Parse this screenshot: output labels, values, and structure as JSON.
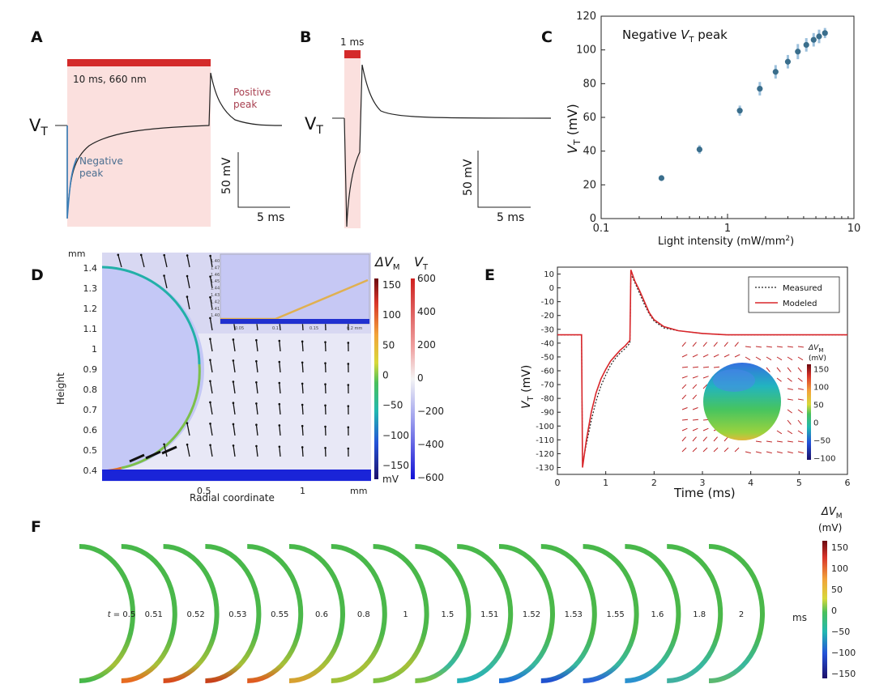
{
  "panels": {
    "A": {
      "label": "A",
      "stim_label": "10 ms, 660 nm",
      "vt_label": "V",
      "vt_sub": "T",
      "positive_peak": [
        "Positive",
        "peak"
      ],
      "negative_peak": [
        "Negative",
        "peak"
      ],
      "scale_v": "50 mV",
      "scale_t": "5 ms"
    },
    "B": {
      "label": "B",
      "stim_label": "1 ms",
      "vt_label": "V",
      "vt_sub": "T",
      "scale_v": "50 mV",
      "scale_t": "5 ms"
    },
    "C": {
      "label": "C",
      "annotation_pre": "Negative ",
      "annotation_v": "V",
      "annotation_sub": "T",
      "annotation_post": " peak",
      "ylabel_v": "V",
      "ylabel_sub": "T",
      "ylabel_post": " (mV)",
      "xlabel": "Light intensity (mW/mm",
      "xlabel_sup": "2",
      "xlabel_post": ")"
    },
    "D": {
      "label": "D",
      "unit_mm_top": "mm",
      "unit_mm_right": "mm",
      "ylabel": "Height",
      "xlabel": "Radial coordinate",
      "yticks": [
        "1.4",
        "1.3",
        "1.2",
        "1.1",
        "1",
        "0.9",
        "0.8",
        "0.7",
        "0.6",
        "0.5",
        "0.4"
      ],
      "xticks": [
        "0.5",
        "1"
      ],
      "cbar1_title": "ΔV",
      "cbar1_sub": "M",
      "cbar1_ticks": [
        "150",
        "100",
        "50",
        "0",
        "−50",
        "−100",
        "−150"
      ],
      "cbar1_unit": "mV",
      "cbar2_title": "V",
      "cbar2_sub": "T",
      "cbar2_ticks": [
        "600",
        "400",
        "200",
        "0",
        "−200",
        "−400",
        "−600"
      ],
      "inset_yticks": [
        "1.40",
        "1.47",
        "1.46",
        "1.45",
        "1.44",
        "1.43",
        "1.42",
        "1.41",
        "1.40"
      ],
      "inset_xticks": [
        "0.05",
        "0.1",
        "0.15",
        "0.2 mm"
      ]
    },
    "E": {
      "label": "E",
      "ylabel_v": "V",
      "ylabel_sub": "T",
      "ylabel_post": " (mV)",
      "xlabel": "Time (ms)",
      "legend_measured": "Measured",
      "legend_modeled": "Modeled",
      "cbar_title": "ΔV",
      "cbar_sub": "M",
      "cbar_unit": "(mV)",
      "cbar_ticks": [
        "150",
        "100",
        "50",
        "0",
        "−50",
        "−100"
      ]
    },
    "F": {
      "label": "F",
      "t_prefix": "t",
      "unit": "ms",
      "times": [
        "0.5",
        "0.51",
        "0.52",
        "0.53",
        "0.55",
        "0.6",
        "0.8",
        "1",
        "1.5",
        "1.51",
        "1.52",
        "1.53",
        "1.55",
        "1.6",
        "1.8",
        "2"
      ],
      "cbar_title": "ΔV",
      "cbar_sub": "M",
      "cbar_unit": "(mV)",
      "cbar_ticks": [
        "150",
        "100",
        "50",
        "0",
        "−50",
        "−100",
        "−150"
      ]
    }
  },
  "chart_data": [
    {
      "type": "scatter",
      "panel": "C",
      "xscale": "log",
      "xlim": [
        0.1,
        10
      ],
      "ylim": [
        0,
        120
      ],
      "xticks": [
        "0.1",
        "1",
        "10"
      ],
      "yticks": [
        "0",
        "20",
        "40",
        "60",
        "80",
        "100",
        "120"
      ],
      "x": [
        0.3,
        0.6,
        1.25,
        1.8,
        2.4,
        3.0,
        3.6,
        4.2,
        4.8,
        5.3,
        5.9
      ],
      "y": [
        24,
        41,
        64,
        77,
        87,
        93,
        99,
        103,
        106,
        108,
        110
      ],
      "yerr": [
        1.5,
        2.5,
        3,
        4,
        4,
        4,
        4.5,
        4,
        4,
        4,
        3
      ],
      "color": "#3a6e8c"
    },
    {
      "type": "line",
      "panel": "E",
      "xlim": [
        0,
        6
      ],
      "ylim": [
        -135,
        15
      ],
      "xticks": [
        "0",
        "1",
        "2",
        "3",
        "4",
        "5",
        "6"
      ],
      "yticks": [
        "10",
        "0",
        "-10",
        "-20",
        "-30",
        "-40",
        "-50",
        "-60",
        "-70",
        "-80",
        "-90",
        "-100",
        "-110",
        "-120",
        "-130"
      ],
      "series": [
        {
          "name": "Measured",
          "color": "#222222",
          "style": "dotted"
        },
        {
          "name": "Modeled",
          "color": "#d8262a",
          "style": "solid"
        }
      ],
      "x": [
        0,
        0.5,
        0.52,
        0.6,
        0.7,
        0.8,
        0.9,
        1.0,
        1.1,
        1.2,
        1.3,
        1.4,
        1.5,
        1.52,
        1.6,
        1.7,
        1.8,
        1.9,
        2.0,
        2.2,
        2.5,
        3.0,
        3.5,
        4.0,
        5.0,
        6.0
      ],
      "modeled": [
        -34,
        -34,
        -130,
        -110,
        -90,
        -76,
        -66,
        -59,
        -53,
        -49,
        -45,
        -42,
        -38,
        13,
        5,
        -2,
        -10,
        -18,
        -23,
        -28,
        -31,
        -33,
        -34,
        -34,
        -34,
        -34
      ],
      "measured": [
        -34,
        -34,
        -127,
        -113,
        -96,
        -82,
        -71,
        -63,
        -56,
        -51,
        -47,
        -44,
        -40,
        10,
        4,
        -4,
        -12,
        -19,
        -24,
        -29,
        -31,
        -33,
        -34,
        -34,
        -34,
        -34
      ]
    }
  ]
}
